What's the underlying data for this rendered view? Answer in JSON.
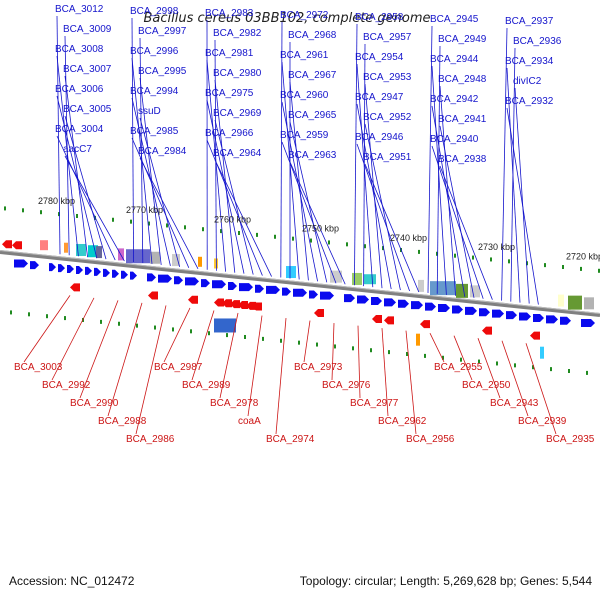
{
  "title": "Bacillus cereus 03BB102, complete genome",
  "footer": {
    "accession": "Accession: NC_012472",
    "topology": "Topology: circular; Length: 5,269,628 bp; Genes: 5,544"
  },
  "colors": {
    "forward": "#0a0aee",
    "reverse": "#ee0a0a",
    "backbone": "#808080",
    "tick": "#1f8a1f",
    "label_forward": "#1515cc",
    "label_reverse": "#cc1515"
  },
  "scale_labels": [
    "2780 kbp",
    "2770 kbp",
    "2760 kbp",
    "2750 kbp",
    "2740 kbp",
    "2730 kbp",
    "2720 kbp"
  ],
  "forward_labels": [
    "BCA_3012",
    "BCA_3009",
    "BCA_3008",
    "BCA_3007",
    "BCA_3006",
    "BCA_3005",
    "BCA_3004",
    "aacC7",
    "BCA_2998",
    "BCA_2997",
    "BCA_2996",
    "BCA_2995",
    "BCA_2994",
    "ssuD",
    "BCA_2985",
    "BCA_2984",
    "BCA_2983",
    "BCA_2982",
    "BCA_2981",
    "BCA_2980",
    "BCA_2975",
    "BCA_2969",
    "BCA_2966",
    "BCA_2964",
    "BCA_2972",
    "BCA_2968",
    "BCA_2961",
    "BCA_2967",
    "BCA_2960",
    "BCA_2965",
    "BCA_2959",
    "BCA_2963",
    "BCA_2958",
    "BCA_2957",
    "BCA_2954",
    "BCA_2953",
    "BCA_2947",
    "BCA_2952",
    "BCA_2946",
    "BCA_2951",
    "BCA_2945",
    "BCA_2949",
    "BCA_2944",
    "BCA_2948",
    "BCA_2942",
    "BCA_2941",
    "BCA_2940",
    "BCA_2938",
    "BCA_2937",
    "BCA_2936",
    "BCA_2934",
    "divIC2",
    "BCA_2932"
  ],
  "reverse_labels": [
    "BCA_3003",
    "BCA_2992",
    "BCA_2990",
    "BCA_2988",
    "BCA_2986",
    "BCA_2987",
    "BCA_2989",
    "BCA_2978",
    "coaA",
    "BCA_2974",
    "BCA_2973",
    "BCA_2976",
    "BCA_2977",
    "BCA_2962",
    "BCA_2956",
    "BCA_2955",
    "BCA_2950",
    "BCA_2943",
    "BCA_2939",
    "BCA_2935"
  ]
}
